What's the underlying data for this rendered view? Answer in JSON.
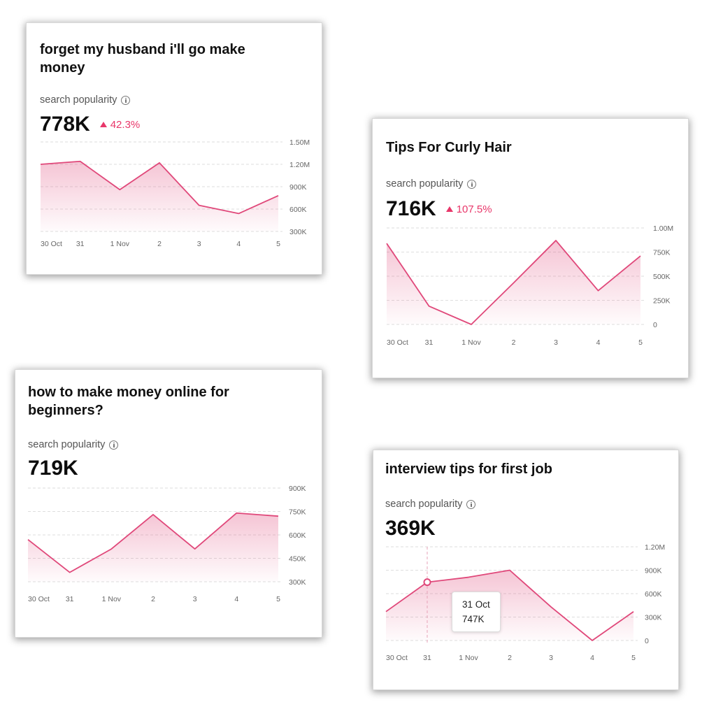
{
  "cards": [
    {
      "title": "forget my husband i'll go make money",
      "metric_label": "search popularity",
      "value": "778K",
      "change": "42.3%",
      "info_icon": "info-circle-icon",
      "change_icon": "up-triangle-icon",
      "chart_data": {
        "type": "area",
        "categories": [
          "30 Oct",
          "31",
          "1 Nov",
          "2",
          "3",
          "4",
          "5"
        ],
        "values": [
          1200000,
          1240000,
          860000,
          1220000,
          650000,
          540000,
          780000
        ],
        "yticks": [
          "1.50M",
          "1.20M",
          "900K",
          "600K",
          "300K"
        ],
        "ylim": [
          300000,
          1500000
        ],
        "color": "#e0487a"
      }
    },
    {
      "title": "Tips For Curly Hair",
      "metric_label": "search popularity",
      "value": "716K",
      "change": "107.5%",
      "info_icon": "info-circle-icon",
      "change_icon": "up-triangle-icon",
      "chart_data": {
        "type": "area",
        "categories": [
          "30 Oct",
          "31",
          "1 Nov",
          "2",
          "3",
          "4",
          "5"
        ],
        "values": [
          840000,
          190000,
          0,
          430000,
          870000,
          350000,
          710000
        ],
        "yticks": [
          "1.00M",
          "750K",
          "500K",
          "250K",
          "0"
        ],
        "ylim": [
          0,
          1000000
        ],
        "color": "#e0487a"
      }
    },
    {
      "title": "how to make money online for beginners?",
      "metric_label": "search popularity",
      "value": "719K",
      "info_icon": "info-circle-icon",
      "chart_data": {
        "type": "area",
        "categories": [
          "30 Oct",
          "31",
          "1 Nov",
          "2",
          "3",
          "4",
          "5"
        ],
        "values": [
          570000,
          360000,
          510000,
          730000,
          510000,
          740000,
          720000
        ],
        "yticks": [
          "900K",
          "750K",
          "600K",
          "450K",
          "300K"
        ],
        "ylim": [
          300000,
          900000
        ],
        "color": "#e0487a"
      }
    },
    {
      "title": "interview tips for first job",
      "metric_label": "search popularity",
      "value": "369K",
      "info_icon": "info-circle-icon",
      "tooltip": {
        "date": "31 Oct",
        "value": "747K"
      },
      "chart_data": {
        "type": "area",
        "categories": [
          "30 Oct",
          "31",
          "1 Nov",
          "2",
          "3",
          "4",
          "5"
        ],
        "values": [
          370000,
          747000,
          810000,
          900000,
          430000,
          0,
          369000
        ],
        "yticks": [
          "1.20M",
          "900K",
          "600K",
          "300K",
          "0"
        ],
        "ylim": [
          0,
          1200000
        ],
        "highlight_index": 1,
        "color": "#e0487a"
      }
    }
  ]
}
